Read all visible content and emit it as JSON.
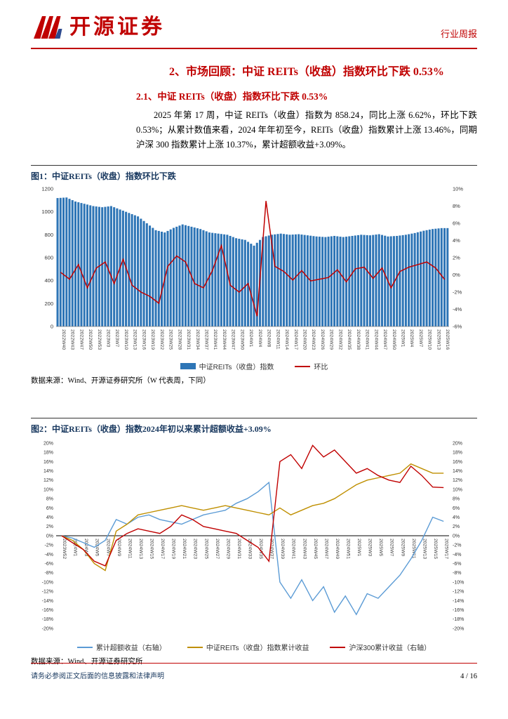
{
  "header": {
    "brand": "开源证券",
    "report_type": "行业周报",
    "accent_color": "#C00000"
  },
  "section": {
    "title": "2、市场回顾：中证 REITs（收盘）指数环比下跌 0.53%",
    "subtitle": "2.1、中证 REITs（收盘）指数环比下跌 0.53%",
    "paragraph": "2025 年第 17 周，中证 REITs（收盘）指数为 858.24，同比上涨 6.62%，环比下跌 0.53%；从累计数值来看，2024 年年初至今，REITs（收盘）指数累计上涨 13.46%，同期沪深 300 指数累计上涨 10.37%，累计超额收益+3.09%。"
  },
  "figure1": {
    "caption": "图1：中证REITs（收盘）指数环比下跌",
    "source": "数据来源：Wind、开源证券研究所（W 代表周，下同）"
  },
  "figure2": {
    "caption": "图2：中证REITs（收盘）指数2024年初以来累计超额收益+3.09%",
    "source": "数据来源：Wind、开源证券研究所"
  },
  "page": {
    "footer_disclaimer": "请务必参阅正文后面的信息披露和法律声明",
    "number": "4 / 16"
  },
  "colors": {
    "accent": "#C00000",
    "caption_navy": "#17375E",
    "bar_blue": "#2E75B6",
    "line_red": "#C00000",
    "excess_blue": "#5B9BD5",
    "reits_gold": "#BF8F00"
  },
  "chart_data": [
    {
      "type": "bar",
      "title": "中证REITs（收盘）指数环比下跌",
      "categories": [
        "2022W40",
        "2022W43",
        "2022W47",
        "2022W50",
        "2022W53",
        "2023W3",
        "2023W7",
        "2023W10",
        "2023W13",
        "2023W16",
        "2023W19",
        "2023W22",
        "2023W25",
        "2023W28",
        "2023W31",
        "2023W34",
        "2023W37",
        "2023W41",
        "2023W44",
        "2023W47",
        "2023W50",
        "2024W1",
        "2024W4",
        "2024W8",
        "2024W11",
        "2024W14",
        "2024W17",
        "2024W20",
        "2024W23",
        "2024W26",
        "2024W29",
        "2024W32",
        "2024W35",
        "2024W38",
        "2024W41",
        "2024W44",
        "2024W47",
        "2024W50",
        "2025W1",
        "2025W4",
        "2025W7",
        "2025W10",
        "2025W13",
        "2025W16"
      ],
      "series": [
        {
          "name": "中证REITs（收盘）指数",
          "type": "bar",
          "axis": "left",
          "color": "#2E75B6",
          "values": [
            1120,
            1125,
            1090,
            1070,
            1050,
            1040,
            1050,
            1020,
            990,
            960,
            900,
            840,
            820,
            860,
            890,
            870,
            850,
            820,
            810,
            800,
            770,
            755,
            705,
            780,
            800,
            810,
            800,
            805,
            795,
            785,
            780,
            790,
            780,
            790,
            800,
            795,
            805,
            785,
            790,
            800,
            815,
            835,
            850,
            858
          ]
        },
        {
          "name": "环比",
          "type": "line",
          "axis": "right",
          "color": "#C00000",
          "values": [
            0.3,
            -0.5,
            1.2,
            -1.5,
            0.8,
            1.5,
            -1.0,
            1.8,
            -1.2,
            -2.0,
            -2.5,
            -3.3,
            1.0,
            2.2,
            1.5,
            -1.0,
            -1.5,
            0.5,
            3.4,
            -1.2,
            -2.0,
            -1.0,
            -4.8,
            8.6,
            1.0,
            0.4,
            -0.6,
            0.5,
            -0.7,
            -0.5,
            -0.3,
            0.6,
            -0.8,
            0.7,
            0.9,
            -0.4,
            0.8,
            -1.5,
            0.4,
            0.9,
            1.2,
            1.5,
            0.8,
            -0.53
          ]
        }
      ],
      "left_axis": {
        "min": 0,
        "max": 1200,
        "step": 200
      },
      "right_axis": {
        "min": -6,
        "max": 10,
        "step": 2,
        "format": "percent"
      },
      "grid": false,
      "legend_position": "bottom"
    },
    {
      "type": "line",
      "title": "中证REITs（收盘）指数2024年初以来累计超额收益+3.09%",
      "categories": [
        "2023W52",
        "2024W1",
        "2024W3",
        "2024W5",
        "2024W7",
        "2024W9",
        "2024W11",
        "2024W13",
        "2024W15",
        "2024W17",
        "2024W19",
        "2024W21",
        "2024W23",
        "2024W25",
        "2024W27",
        "2024W29",
        "2024W31",
        "2024W33",
        "2024W35",
        "2024W37",
        "2024W39",
        "2024W41",
        "2024W43",
        "2024W45",
        "2024W47",
        "2024W49",
        "2024W51",
        "2025W1",
        "2025W3",
        "2025W5",
        "2025W7",
        "2025W9",
        "2025W11",
        "2025W13",
        "2025W15",
        "2025W17"
      ],
      "series": [
        {
          "name": "累计超额收益（右轴）",
          "type": "line",
          "axis": "right",
          "color": "#5B9BD5",
          "values": [
            0,
            -0.5,
            -1.5,
            -2.5,
            -1,
            3.5,
            2.5,
            4,
            4.5,
            3.5,
            3,
            2.5,
            3.5,
            4.5,
            5,
            5.5,
            7,
            8,
            9.5,
            11.5,
            -10,
            -13.5,
            -9.5,
            -14,
            -11,
            -16.5,
            -13,
            -17,
            -12.5,
            -13.5,
            -11,
            -8.5,
            -5,
            -1,
            4,
            3.1
          ]
        },
        {
          "name": "中证REITs（收盘）指数累计收益",
          "type": "line",
          "axis": "left",
          "color": "#BF8F00",
          "values": [
            0,
            -1,
            -3,
            -6,
            -7.5,
            1,
            2.5,
            4.5,
            5,
            5.5,
            6,
            6.5,
            6,
            5.5,
            6,
            6.5,
            6,
            5.5,
            5,
            4.5,
            6,
            4.5,
            5.5,
            6.5,
            7,
            8,
            9.5,
            11,
            12,
            12.5,
            13,
            13.5,
            15.5,
            14.5,
            13.5,
            13.5
          ]
        },
        {
          "name": "沪深300累计收益（右轴）",
          "type": "line",
          "axis": "right",
          "color": "#C00000",
          "values": [
            0,
            -1.5,
            -3,
            -5.5,
            -6.5,
            -1,
            0.5,
            1.5,
            1,
            0.5,
            2,
            4.5,
            3.5,
            2,
            1.5,
            1,
            0.5,
            -1,
            -2.5,
            -5.5,
            16,
            17.5,
            14.5,
            19.5,
            17,
            18.5,
            16,
            13.5,
            14.5,
            13,
            12,
            11.5,
            15,
            13,
            10.5,
            10.4
          ]
        }
      ],
      "left_axis": {
        "min": -20,
        "max": 20,
        "step": 2,
        "format": "percent"
      },
      "right_axis": {
        "min": -20,
        "max": 20,
        "step": 2,
        "format": "percent"
      },
      "x_labels_at_zero_line": true,
      "grid": false,
      "legend_position": "bottom"
    }
  ]
}
